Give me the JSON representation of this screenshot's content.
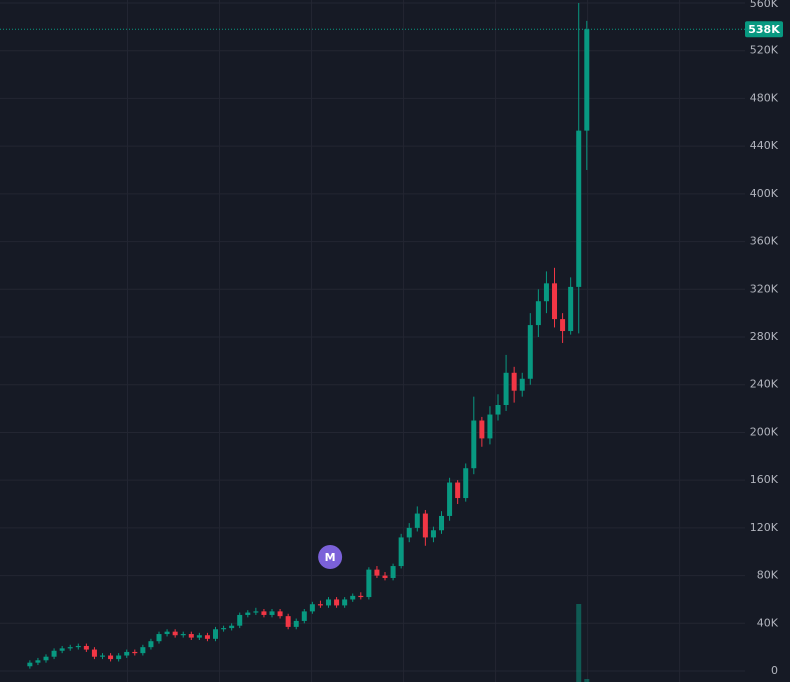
{
  "chart_data": {
    "type": "candlestick",
    "up_color": "#089981",
    "down_color": "#f23645",
    "grid": true,
    "ylim": [
      -9200,
      562500
    ],
    "yticks": [
      {
        "value": 0,
        "label": "0"
      },
      {
        "value": 40000,
        "label": "40K"
      },
      {
        "value": 80000,
        "label": "80K"
      },
      {
        "value": 120000,
        "label": "120K"
      },
      {
        "value": 160000,
        "label": "160K"
      },
      {
        "value": 200000,
        "label": "200K"
      },
      {
        "value": 240000,
        "label": "240K"
      },
      {
        "value": 280000,
        "label": "280K"
      },
      {
        "value": 320000,
        "label": "320K"
      },
      {
        "value": 360000,
        "label": "360K"
      },
      {
        "value": 400000,
        "label": "400K"
      },
      {
        "value": 440000,
        "label": "440K"
      },
      {
        "value": 480000,
        "label": "480K"
      },
      {
        "value": 520000,
        "label": "520K"
      },
      {
        "value": 560000,
        "label": "560K"
      }
    ],
    "xlim": [
      -3.7,
      88.6
    ],
    "xticks": [
      12.1,
      23.5,
      34.9,
      46.3,
      57.7,
      69.1,
      80.5
    ],
    "open": [
      4000,
      7000,
      9000,
      12000,
      17000,
      19000,
      20000,
      21000,
      18000,
      12000,
      13000,
      10000,
      13000,
      16000,
      15000,
      20000,
      25000,
      31000,
      33000,
      30000,
      31000,
      28000,
      30000,
      27000,
      35000,
      36000,
      38000,
      47000,
      49000,
      50000,
      47000,
      50000,
      46000,
      37000,
      42000,
      50000,
      56000,
      55000,
      60000,
      55000,
      60000,
      63000,
      62000,
      85000,
      80000,
      78000,
      88000,
      112000,
      120000,
      132000,
      112000,
      118000,
      130000,
      158000,
      145000,
      170000,
      210000,
      195000,
      215000,
      223000,
      250000,
      235000,
      245000,
      290000,
      310000,
      325000,
      295000,
      285000,
      322000,
      453000
    ],
    "high": [
      9000,
      11000,
      14000,
      19000,
      21000,
      22000,
      23000,
      23000,
      20000,
      15000,
      15000,
      15000,
      18000,
      18000,
      22000,
      27000,
      33000,
      35000,
      35000,
      33000,
      33000,
      32000,
      32000,
      37000,
      38000,
      40000,
      49000,
      51000,
      53000,
      52000,
      52000,
      52000,
      48000,
      44000,
      52000,
      58000,
      59000,
      62000,
      62000,
      62000,
      65000,
      66000,
      87000,
      88000,
      83000,
      90000,
      115000,
      124000,
      138000,
      135000,
      121000,
      134000,
      162000,
      160000,
      174000,
      230000,
      213000,
      222000,
      232000,
      265000,
      255000,
      250000,
      300000,
      320000,
      335000,
      338000,
      300000,
      330000,
      560000,
      545000
    ],
    "low": [
      2000,
      5000,
      7000,
      10000,
      15000,
      17000,
      18000,
      16000,
      10000,
      10000,
      8000,
      8000,
      11000,
      13000,
      13000,
      18000,
      23000,
      29000,
      28000,
      28000,
      26000,
      26000,
      25000,
      25000,
      33000,
      34000,
      36000,
      45000,
      47000,
      45000,
      45000,
      44000,
      35000,
      35000,
      40000,
      48000,
      53000,
      53000,
      53000,
      53000,
      58000,
      60000,
      60000,
      78000,
      76000,
      76000,
      86000,
      108000,
      117000,
      105000,
      108000,
      115000,
      126000,
      140000,
      142000,
      165000,
      188000,
      190000,
      210000,
      218000,
      225000,
      230000,
      240000,
      280000,
      300000,
      288000,
      275000,
      282000,
      283000,
      420000
    ],
    "close": [
      7000,
      9000,
      12000,
      17000,
      19000,
      20000,
      21000,
      18000,
      12000,
      13000,
      10000,
      13000,
      16000,
      15000,
      20000,
      25000,
      31000,
      33000,
      30000,
      31000,
      28000,
      30000,
      27000,
      35000,
      36000,
      38000,
      47000,
      49000,
      50000,
      47000,
      50000,
      46000,
      37000,
      42000,
      50000,
      56000,
      55000,
      60000,
      55000,
      60000,
      63000,
      62000,
      85000,
      80000,
      78000,
      88000,
      112000,
      120000,
      132000,
      112000,
      118000,
      130000,
      158000,
      145000,
      170000,
      210000,
      195000,
      215000,
      223000,
      250000,
      235000,
      245000,
      290000,
      310000,
      325000,
      295000,
      285000,
      322000,
      453000,
      538000
    ],
    "volume": [
      0,
      0,
      0,
      0,
      0,
      0,
      0,
      0,
      0,
      0,
      0,
      0,
      0,
      0,
      0,
      0,
      0,
      0,
      0,
      0,
      0,
      0,
      0,
      0,
      0,
      0,
      0,
      0,
      0,
      0,
      0,
      0,
      0,
      0,
      0,
      0,
      0,
      0,
      0,
      0,
      0,
      0,
      0,
      0,
      0,
      0,
      0,
      0,
      0,
      0,
      0,
      0,
      0,
      0,
      0,
      0,
      0,
      0,
      0,
      0,
      0,
      0,
      0,
      0,
      0,
      0,
      0,
      0,
      78,
      3
    ],
    "volume_lim": [
      0,
      100
    ],
    "last_price": {
      "value": 538000,
      "label": "538K"
    },
    "annotations": [
      {
        "text": "M",
        "x": 37.2,
        "y": 95600
      }
    ]
  }
}
